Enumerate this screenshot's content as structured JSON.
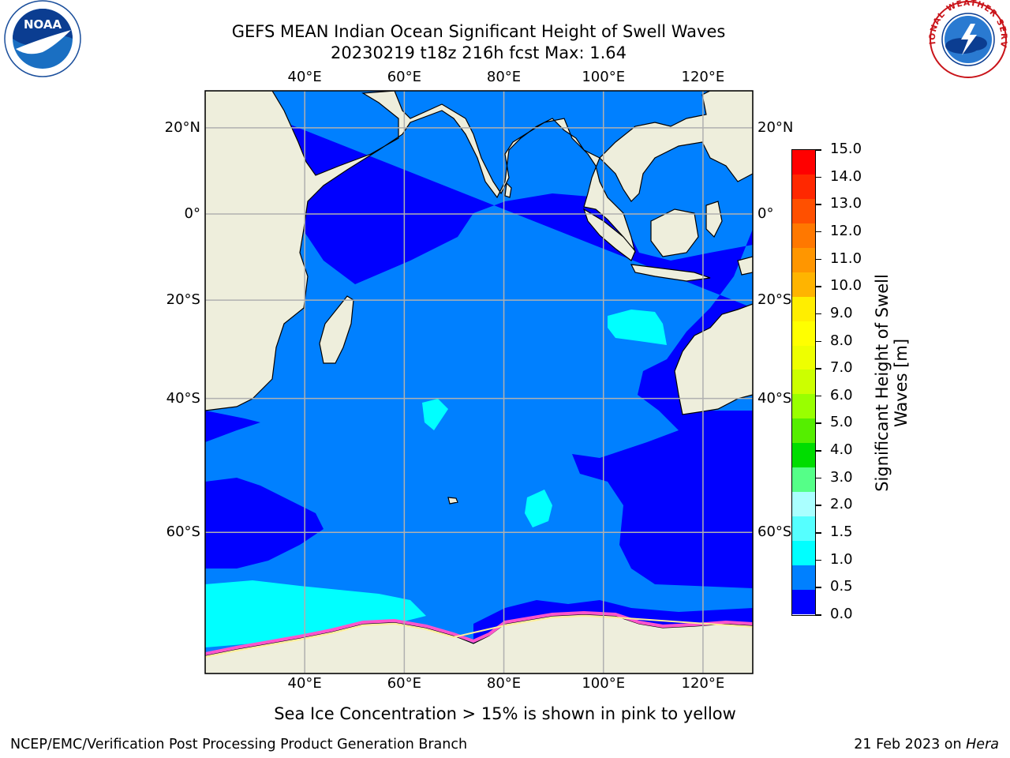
{
  "title_line1": "GEFS MEAN Indian Ocean Significant Height of Swell Waves",
  "title_line2": "20230219 t18z 216h fcst   Max: 1.64",
  "map": {
    "lon_labels": [
      "40°E",
      "60°E",
      "80°E",
      "100°E",
      "120°E"
    ],
    "lat_labels": [
      "20°N",
      "0°",
      "20°S",
      "40°S",
      "60°S"
    ],
    "lon_values": [
      40,
      60,
      80,
      100,
      120
    ],
    "lat_values": [
      20,
      0,
      -20,
      -40,
      -60
    ],
    "lon_range": [
      20,
      130
    ],
    "lat_range": [
      -73,
      28
    ],
    "colors": {
      "land": "#eeeedc",
      "ice_free_zero": "#0000ff",
      "band_0_5_1": "#0080ff",
      "band_1_1_5": "#00ffff",
      "grid": "#b0b0b0"
    }
  },
  "colorbar": {
    "ticks": [
      "15.0",
      "14.0",
      "13.0",
      "12.0",
      "11.0",
      "10.0",
      "9.0",
      "8.0",
      "7.0",
      "6.0",
      "5.0",
      "4.0",
      "3.0",
      "2.0",
      "1.5",
      "1.0",
      "0.5",
      "0.0"
    ],
    "colors": [
      "#ff0000",
      "#ff2800",
      "#ff5000",
      "#ff7800",
      "#ff9600",
      "#ffb400",
      "#ffee00",
      "#ffff00",
      "#eeff00",
      "#ccff00",
      "#99ff00",
      "#55ee00",
      "#00dd00",
      "#55ff88",
      "#aaffff",
      "#55ffff",
      "#00ffff",
      "#0080ff",
      "#0000ff"
    ],
    "label": "Significant Height of Swell\nWaves [m]",
    "label_line1": "Significant Height of Swell",
    "label_line2": "Waves [m]"
  },
  "bottom_note": "Sea Ice Concentration > 15% is shown in pink to yellow",
  "footer": {
    "left": "NCEP/EMC/Verification Post Processing Product Generation Branch",
    "date": "21 Feb 2023 on ",
    "host": "Hera"
  },
  "logos": {
    "noaa_text": "NOAA",
    "nws_text": "NATIONAL WEATHER SERVICE"
  }
}
